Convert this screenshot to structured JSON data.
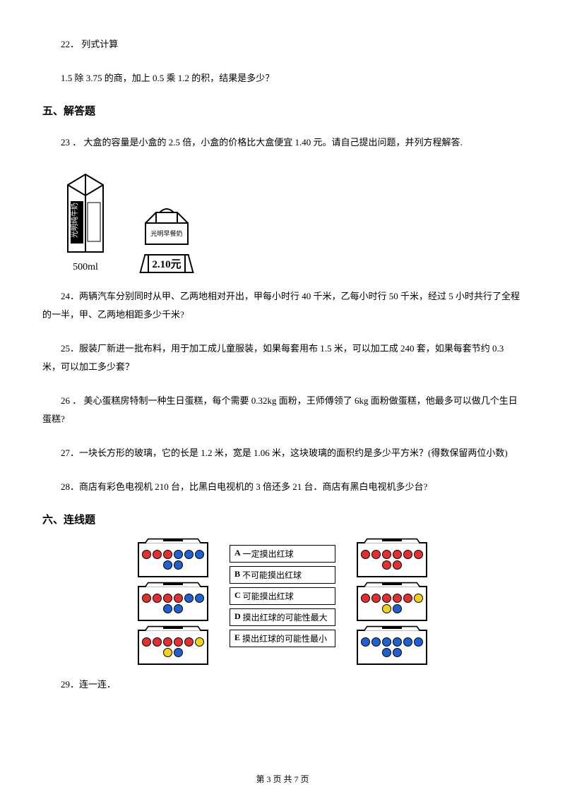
{
  "q22_num": "22．",
  "q22_title": "列式计算",
  "q22_body": "1.5 除 3.75 的商，加上 0.5 乘 1.2 的积，结果是多少？",
  "section5": "五、解答题",
  "q23_num": "23 ．",
  "q23_body": " 大盒的容量是小盒的 2.5 倍，小盒的价格比大盒便宜 1.40 元。请自己提出问题，并列方程解答.",
  "milk_volume": "500ml",
  "small_price": "2.10元",
  "q24_num": "24．",
  "q24_body": "两辆汽车分别同时从甲、乙两地相对开出，甲每小时行 40 千米，乙每小时行 50 千米，经过 5 小时共行了全程的一半，甲、乙两地相距多少千米?",
  "q25_num": "25．",
  "q25_body": "服装厂新进一批布料，用于加工成儿童服装，如果每套用布 1.5 米，可以加工成 240 套，如果每套节约 0.3 米，可以加工多少套？",
  "q26_num": "26 ．",
  "q26_body": " 美心蛋糕房特制一种生日蛋糕，每个需要 0.32kg 面粉，王师傅领了 6kg 面粉做蛋糕，他最多可以做几个生日蛋糕?",
  "q27_num": "27．",
  "q27_body": "一块长方形的玻璃，它的长是 1.2 米，宽是 1.06 米，这块玻璃的面积约是多少平方米？(得数保留两位小数)",
  "q28_num": "28．",
  "q28_body": "商店有彩色电视机 210 台，比黑白电视机的 3 倍还多 21 台．商店有黑白电视机多少台?",
  "section6": "六、连线题",
  "labels": {
    "a_k": "A",
    "a_t": "一定摸出红球",
    "b_k": "B",
    "b_t": "不可能摸出红球",
    "c_k": "C",
    "c_t": "可能摸出红球",
    "d_k": "D",
    "d_t": "摸出红球的可能性最大",
    "e_k": "E",
    "e_t": "摸出红球的可能性最小"
  },
  "left_boxes": [
    [
      "r",
      "r",
      "r",
      "b",
      "b",
      "b",
      "b",
      "b"
    ],
    [
      "r",
      "r",
      "r",
      "r",
      "b",
      "b",
      "b",
      "b"
    ],
    [
      "r",
      "r",
      "r",
      "r",
      "r",
      "y",
      "y",
      "b"
    ]
  ],
  "right_boxes": [
    [
      "r",
      "r",
      "r",
      "r",
      "r",
      "r",
      "r",
      "r"
    ],
    [
      "r",
      "r",
      "r",
      "r",
      "r",
      "y",
      "y",
      "b"
    ],
    [
      "b",
      "b",
      "b",
      "b",
      "b",
      "b",
      "b",
      "b"
    ]
  ],
  "q29_num": "29．",
  "q29_body": "连一连．",
  "footer": "第 3 页 共 7 页"
}
